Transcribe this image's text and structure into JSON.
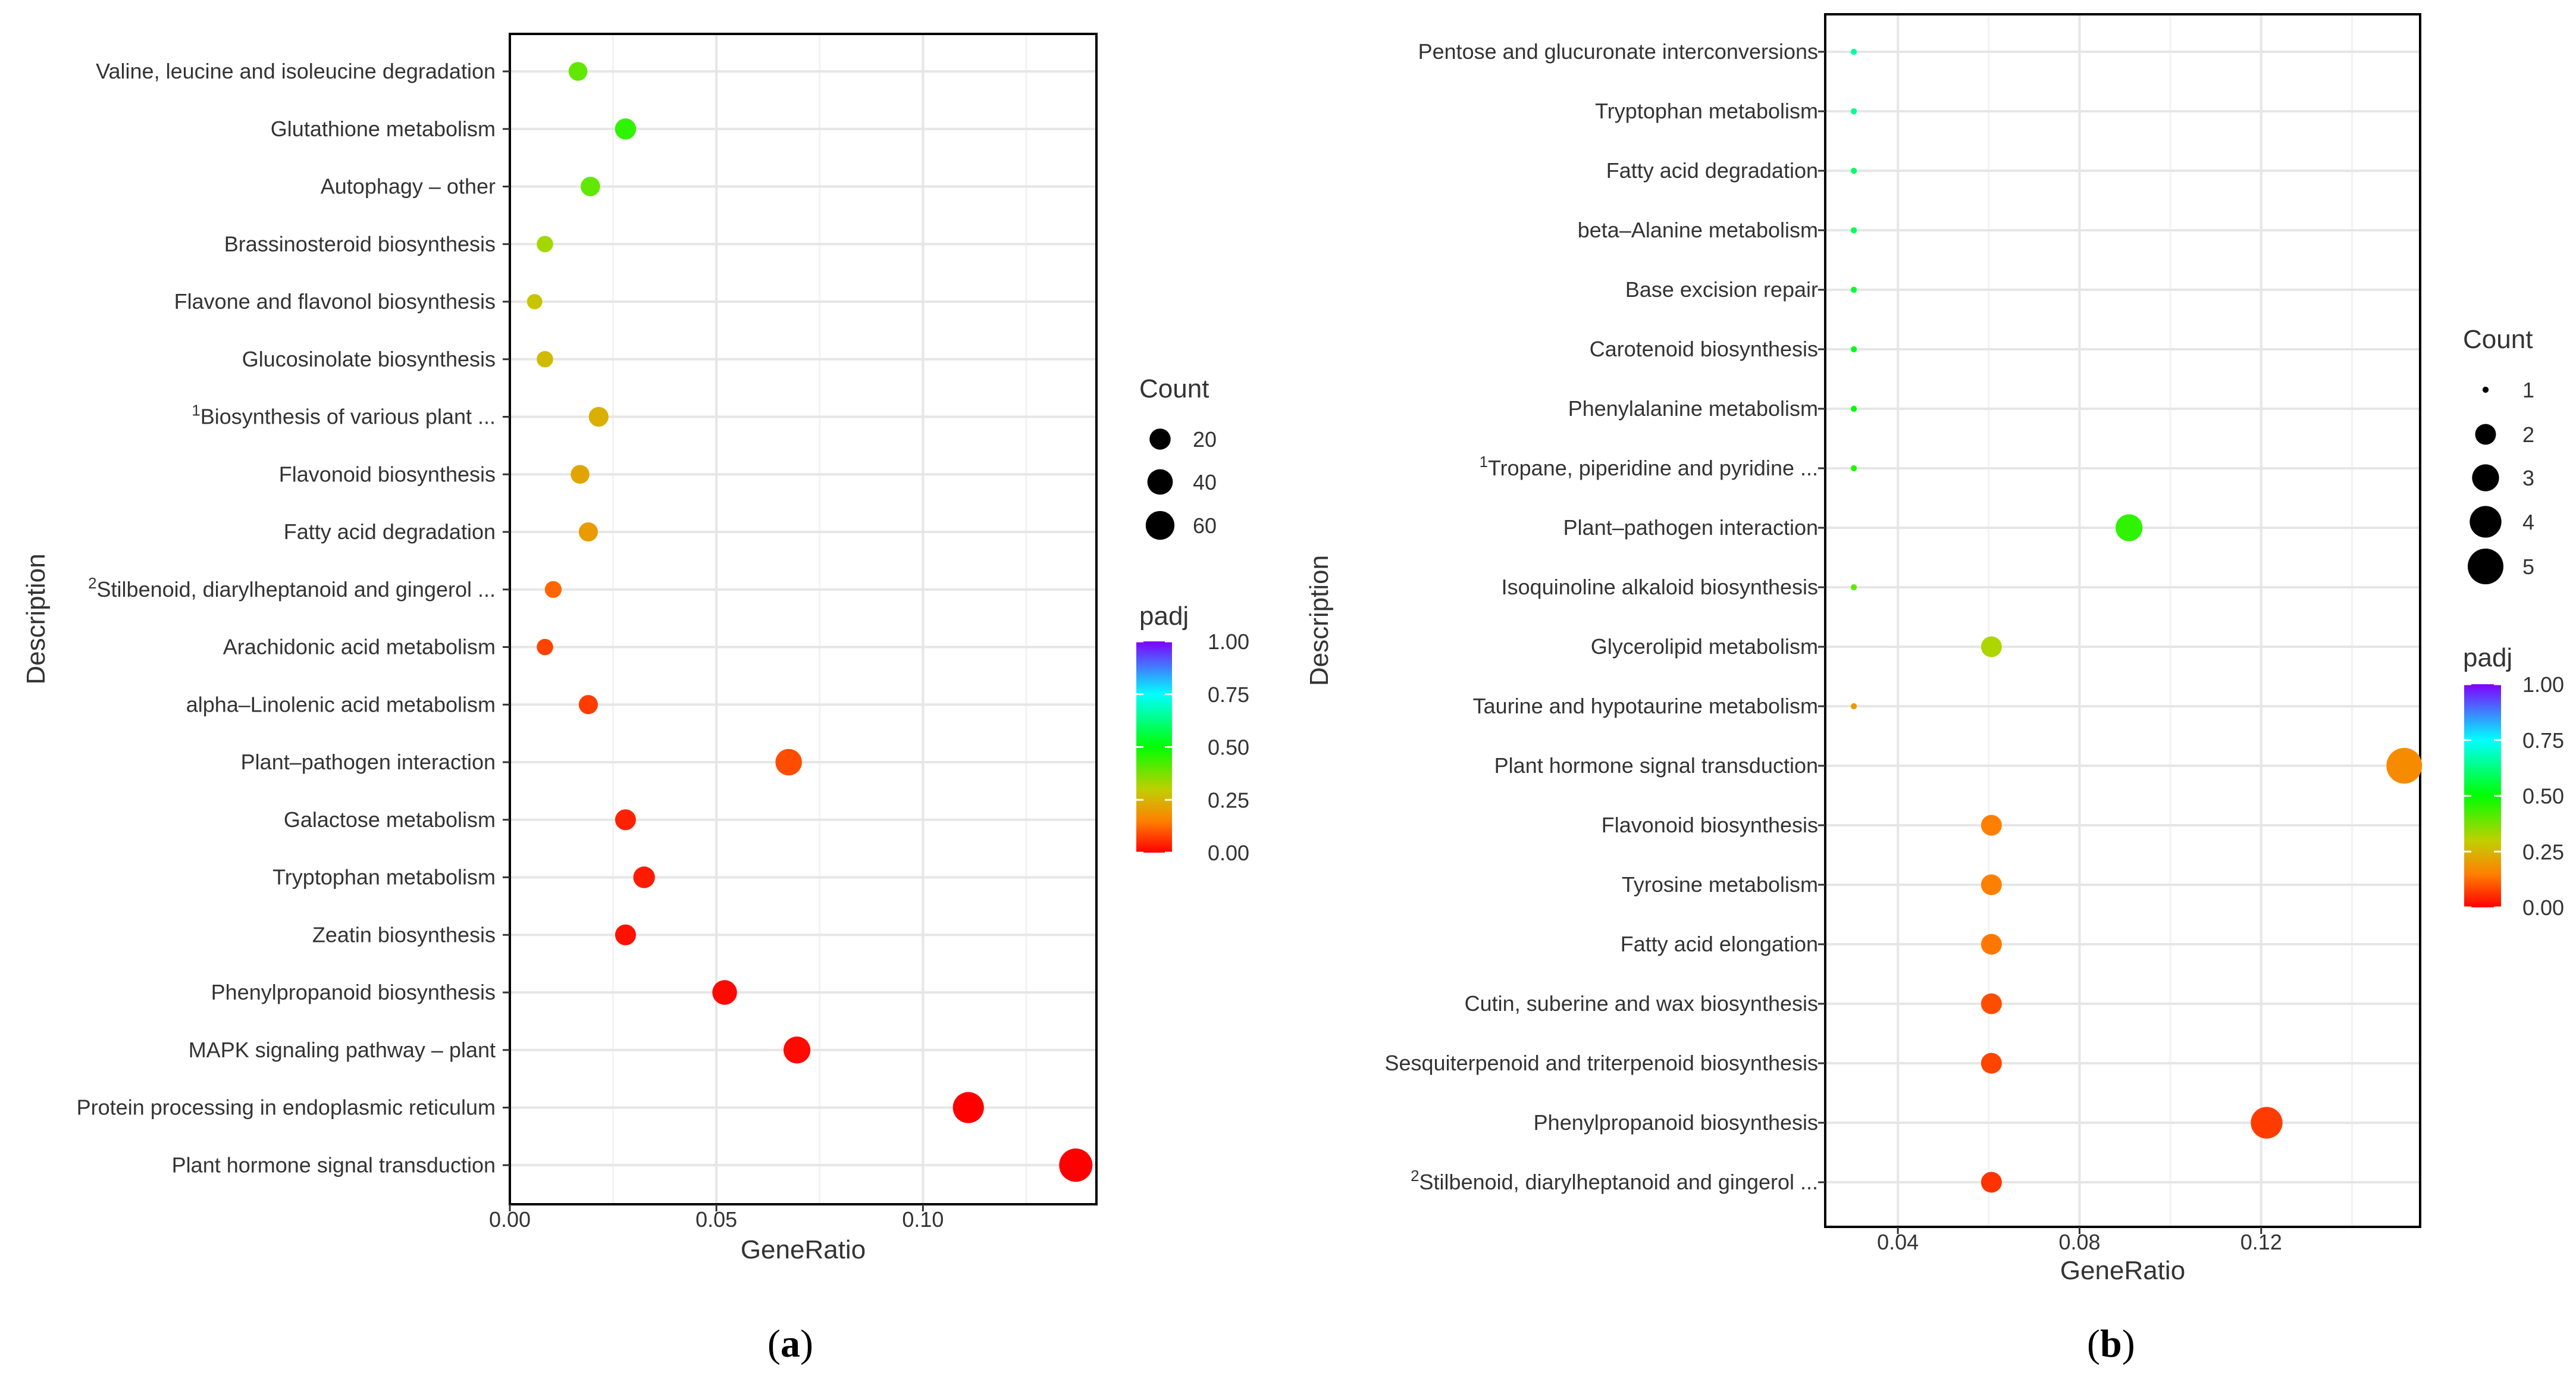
{
  "chart_data": [
    {
      "type": "scatter",
      "panel_label": "a",
      "xlabel": "GeneRatio",
      "ylabel": "Description",
      "xlim": [
        0.0,
        0.142
      ],
      "xticks": [
        0.0,
        0.05,
        0.1
      ],
      "xtick_labels": [
        "0.00",
        "0.05",
        "0.10"
      ],
      "categories": [
        "Valine, leucine and isoleucine degradation",
        "Glutathione metabolism",
        "Autophagy – other",
        "Brassinosteroid biosynthesis",
        "Flavone and flavonol biosynthesis",
        "Glucosinolate biosynthesis",
        "Biosynthesis of various plant ...",
        "Flavonoid biosynthesis",
        "Fatty acid degradation",
        "Stilbenoid, diarylheptanoid and gingerol ...",
        "Arachidonic acid metabolism",
        "alpha–Linolenic acid metabolism",
        "Plant–pathogen interaction",
        "Galactose metabolism",
        "Tryptophan metabolism",
        "Zeatin biosynthesis",
        "Phenylpropanoid biosynthesis",
        "MAPK signaling pathway – plant",
        "Protein processing in endoplasmic reticulum",
        "Plant hormone signal transduction"
      ],
      "superscripts": {
        "6": "1",
        "9": "2"
      },
      "points": [
        {
          "gene_ratio": 0.0165,
          "count": 12,
          "padj": 0.4
        },
        {
          "gene_ratio": 0.028,
          "count": 20,
          "padj": 0.45
        },
        {
          "gene_ratio": 0.0195,
          "count": 14,
          "padj": 0.4
        },
        {
          "gene_ratio": 0.0085,
          "count": 6,
          "padj": 0.33
        },
        {
          "gene_ratio": 0.006,
          "count": 4,
          "padj": 0.28
        },
        {
          "gene_ratio": 0.0085,
          "count": 6,
          "padj": 0.26
        },
        {
          "gene_ratio": 0.0215,
          "count": 15,
          "padj": 0.24
        },
        {
          "gene_ratio": 0.017,
          "count": 12,
          "padj": 0.22
        },
        {
          "gene_ratio": 0.019,
          "count": 13,
          "padj": 0.2
        },
        {
          "gene_ratio": 0.0105,
          "count": 7,
          "padj": 0.12
        },
        {
          "gene_ratio": 0.0085,
          "count": 6,
          "padj": 0.08
        },
        {
          "gene_ratio": 0.019,
          "count": 13,
          "padj": 0.07
        },
        {
          "gene_ratio": 0.0675,
          "count": 46,
          "padj": 0.09
        },
        {
          "gene_ratio": 0.028,
          "count": 19,
          "padj": 0.04
        },
        {
          "gene_ratio": 0.0325,
          "count": 22,
          "padj": 0.03
        },
        {
          "gene_ratio": 0.028,
          "count": 19,
          "padj": 0.02
        },
        {
          "gene_ratio": 0.052,
          "count": 36,
          "padj": 0.01
        },
        {
          "gene_ratio": 0.0695,
          "count": 48,
          "padj": 0.01
        },
        {
          "gene_ratio": 0.111,
          "count": 76,
          "padj": 0.0
        },
        {
          "gene_ratio": 0.137,
          "count": 94,
          "padj": 0.0
        }
      ],
      "size_legend": {
        "title": "Count",
        "values": [
          20,
          40,
          60
        ],
        "labels": [
          "20",
          "40",
          "60"
        ]
      },
      "color_legend": {
        "title": "padj",
        "ticks": [
          1.0,
          0.75,
          0.5,
          0.25,
          0.0
        ],
        "labels": [
          "1.00",
          "0.75",
          "0.50",
          "0.25",
          "0.00"
        ]
      }
    },
    {
      "type": "scatter",
      "panel_label": "b",
      "xlabel": "GeneRatio",
      "ylabel": "Description",
      "xlim": [
        0.024,
        0.155
      ],
      "xticks": [
        0.04,
        0.08,
        0.12
      ],
      "xtick_labels": [
        "0.04",
        "0.08",
        "0.12"
      ],
      "categories": [
        "Pentose and glucuronate interconversions",
        "Tryptophan metabolism",
        "Fatty acid degradation",
        "beta–Alanine metabolism",
        "Base excision repair",
        "Carotenoid biosynthesis",
        "Phenylalanine metabolism",
        "Tropane, piperidine and pyridine ...",
        "Plant–pathogen interaction",
        "Isoquinoline alkaloid biosynthesis",
        "Glycerolipid metabolism",
        "Taurine and hypotaurine metabolism",
        "Plant hormone signal transduction",
        "Flavonoid biosynthesis",
        "Tyrosine metabolism",
        "Fatty acid elongation",
        "Cutin, suberine and wax biosynthesis",
        "Sesquiterpenoid and triterpenoid biosynthesis",
        "Phenylpropanoid biosynthesis",
        "Stilbenoid, diarylheptanoid and gingerol ..."
      ],
      "superscripts": {
        "7": "1",
        "19": "2"
      },
      "points": [
        {
          "gene_ratio": 0.0303,
          "count": 1,
          "padj": 0.66
        },
        {
          "gene_ratio": 0.0303,
          "count": 1,
          "padj": 0.64
        },
        {
          "gene_ratio": 0.0303,
          "count": 1,
          "padj": 0.6
        },
        {
          "gene_ratio": 0.0303,
          "count": 1,
          "padj": 0.58
        },
        {
          "gene_ratio": 0.0303,
          "count": 1,
          "padj": 0.55
        },
        {
          "gene_ratio": 0.0303,
          "count": 1,
          "padj": 0.52
        },
        {
          "gene_ratio": 0.0303,
          "count": 1,
          "padj": 0.5
        },
        {
          "gene_ratio": 0.0303,
          "count": 1,
          "padj": 0.47
        },
        {
          "gene_ratio": 0.0909,
          "count": 3,
          "padj": 0.45
        },
        {
          "gene_ratio": 0.0303,
          "count": 1,
          "padj": 0.4
        },
        {
          "gene_ratio": 0.0606,
          "count": 2,
          "padj": 0.32
        },
        {
          "gene_ratio": 0.0303,
          "count": 1,
          "padj": 0.2
        },
        {
          "gene_ratio": 0.1515,
          "count": 5,
          "padj": 0.17
        },
        {
          "gene_ratio": 0.0606,
          "count": 2,
          "padj": 0.15
        },
        {
          "gene_ratio": 0.0606,
          "count": 2,
          "padj": 0.15
        },
        {
          "gene_ratio": 0.0606,
          "count": 2,
          "padj": 0.14
        },
        {
          "gene_ratio": 0.0606,
          "count": 2,
          "padj": 0.09
        },
        {
          "gene_ratio": 0.0606,
          "count": 2,
          "padj": 0.08
        },
        {
          "gene_ratio": 0.1212,
          "count": 4,
          "padj": 0.07
        },
        {
          "gene_ratio": 0.0606,
          "count": 2,
          "padj": 0.06
        }
      ],
      "size_legend": {
        "title": "Count",
        "values": [
          1,
          2,
          3,
          4,
          5
        ],
        "labels": [
          "1",
          "2",
          "3",
          "4",
          "5"
        ]
      },
      "color_legend": {
        "title": "padj",
        "ticks": [
          1.0,
          0.75,
          0.5,
          0.25,
          0.0
        ],
        "labels": [
          "1.00",
          "0.75",
          "0.50",
          "0.25",
          "0.00"
        ]
      }
    }
  ],
  "colors": {
    "gradient": [
      "#ff0000",
      "#ff8000",
      "#c0d000",
      "#00ff00",
      "#00ffff",
      "#8000ff"
    ],
    "grid": "#ebebeb",
    "axis": "#000000",
    "text": "#333333"
  }
}
